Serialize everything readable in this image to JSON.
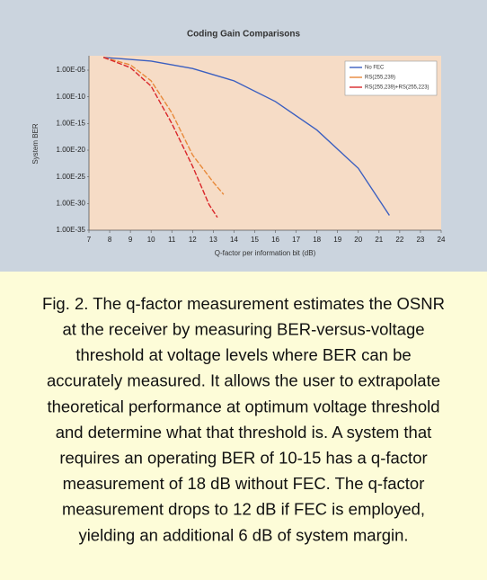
{
  "chart_data": {
    "type": "line",
    "title": "Coding Gain Comparisons",
    "xlabel": "Q-factor per information bit (dB)",
    "ylabel": "System BER",
    "log_y": true,
    "legend": "upper right",
    "xlim": [
      7,
      24
    ],
    "xticks": [
      7,
      8,
      9,
      10,
      11,
      12,
      13,
      14,
      15,
      16,
      17,
      18,
      19,
      20,
      21,
      22,
      23,
      24
    ],
    "ylim": [
      1e-35,
      0.005
    ],
    "yticks": [
      {
        "value": 1e-05,
        "label": "1.00E-05"
      },
      {
        "value": 1e-10,
        "label": "1.00E-10"
      },
      {
        "value": 1e-15,
        "label": "1.00E-15"
      },
      {
        "value": 1e-20,
        "label": "1.00E-20"
      },
      {
        "value": 1e-25,
        "label": "1.00E-25"
      },
      {
        "value": 1e-30,
        "label": "1.00E-30"
      },
      {
        "value": 1e-35,
        "label": "1.00E-35"
      }
    ],
    "series": [
      {
        "name": "No FEC",
        "color": "#3b5fc0",
        "x": [
          7.7,
          10,
          12,
          14,
          16,
          18,
          20,
          21.5
        ],
        "values": [
          0.0025,
          0.0005,
          2e-05,
          1e-07,
          1.3e-11,
          6e-17,
          4e-24,
          6e-33
        ]
      },
      {
        "name": "RS(255,239)",
        "color": "#e8893a",
        "x": [
          7.7,
          9,
          10,
          11,
          12,
          13,
          13.5
        ],
        "values": [
          0.0025,
          0.0001,
          1e-07,
          1e-13,
          1.3e-21,
          1e-26,
          5e-29
        ]
      },
      {
        "name": "RS(255,239)+RS(255,223)",
        "color": "#d9262a",
        "x": [
          7.7,
          9,
          10,
          11,
          12,
          12.8,
          13.2
        ],
        "values": [
          0.0025,
          3e-05,
          1e-08,
          1e-15,
          1e-23,
          6e-31,
          2.5e-33
        ]
      }
    ]
  },
  "caption": [
    "Fig. 2.  The q-factor measurement estimates the OSNR",
    "at the receiver by measuring BER-versus-voltage",
    "threshold at voltage levels where BER can be",
    "accurately measured. It allows the user to extrapolate",
    "theoretical performance at optimum voltage threshold",
    "and determine what that threshold is. A system that",
    "requires an operating BER of 10-15 has a q-factor",
    "measurement of 18 dB without FEC. The q-factor",
    "measurement drops to 12 dB if FEC is employed,",
    "yielding an additional 6 dB of system margin."
  ]
}
